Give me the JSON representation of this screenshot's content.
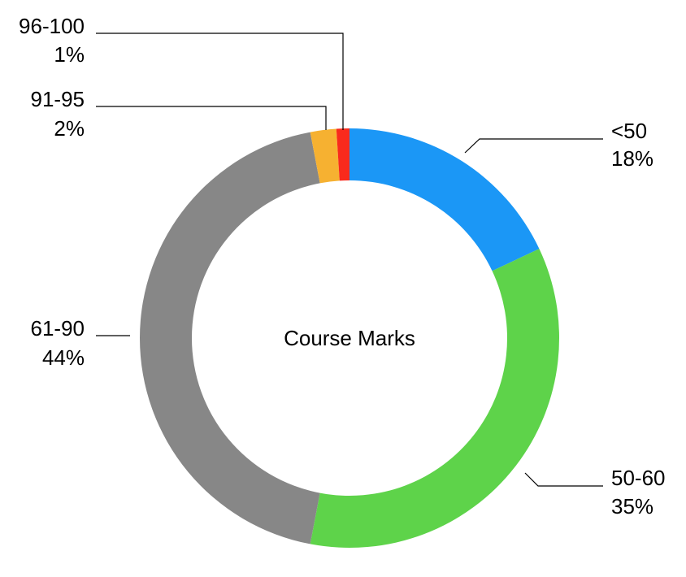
{
  "chart_data": {
    "type": "donut",
    "center_label": "Course Marks",
    "slices": [
      {
        "label": "<50",
        "percent_label": "18%",
        "value": 18,
        "color": "#1b97f6"
      },
      {
        "label": "50-60",
        "percent_label": "35%",
        "value": 35,
        "color": "#5ed34a"
      },
      {
        "label": "61-90",
        "percent_label": "44%",
        "value": 44,
        "color": "#878787"
      },
      {
        "label": "91-95",
        "percent_label": "2%",
        "value": 2,
        "color": "#f6b131"
      },
      {
        "label": "96-100",
        "percent_label": "1%",
        "value": 1,
        "color": "#f92a1c"
      }
    ]
  }
}
